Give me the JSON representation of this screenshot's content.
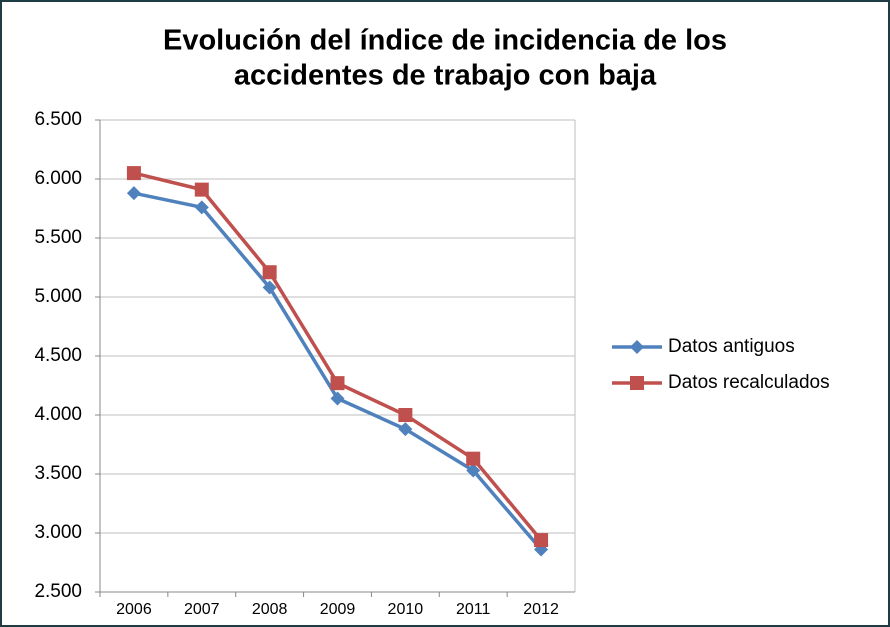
{
  "chart_data": {
    "type": "line",
    "title": [
      "Evolución del índice de incidencia de los",
      "accidentes de trabajo con baja"
    ],
    "categories": [
      "2006",
      "2007",
      "2008",
      "2009",
      "2010",
      "2011",
      "2012"
    ],
    "series": [
      {
        "name": "Datos antiguos",
        "color": "#4f81bd",
        "marker": "diamond",
        "values": [
          5880,
          5760,
          5080,
          4140,
          3880,
          3530,
          2860
        ]
      },
      {
        "name": "Datos recalculados",
        "color": "#c0504d",
        "marker": "square",
        "values": [
          6050,
          5910,
          5210,
          4270,
          4000,
          3630,
          2940
        ]
      }
    ],
    "ylim": [
      2500,
      6500
    ],
    "yticks": [
      {
        "value": 2500,
        "label": "2.500"
      },
      {
        "value": 3000,
        "label": "3.000"
      },
      {
        "value": 3500,
        "label": "3.500"
      },
      {
        "value": 4000,
        "label": "4.000"
      },
      {
        "value": 4500,
        "label": "4.500"
      },
      {
        "value": 5000,
        "label": "5.000"
      },
      {
        "value": 5500,
        "label": "5.500"
      },
      {
        "value": 6000,
        "label": "6.000"
      },
      {
        "value": 6500,
        "label": "6.500"
      }
    ],
    "grid": true,
    "legend": "right"
  }
}
